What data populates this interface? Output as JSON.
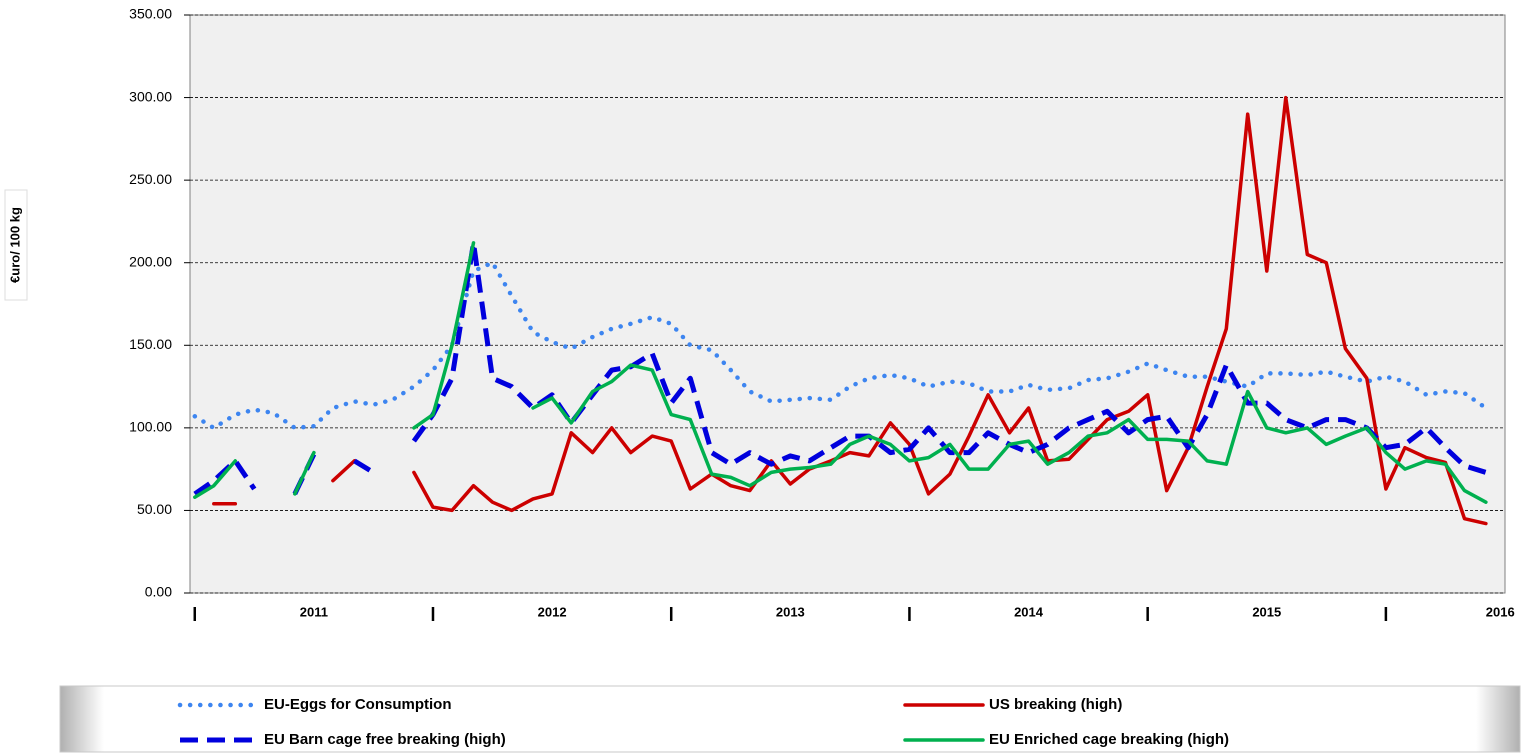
{
  "chart_data": {
    "type": "line",
    "ylabel": "€uro/ 100 kg",
    "x": [
      2011.0,
      2011.08,
      2011.17,
      2011.25,
      2011.33,
      2011.42,
      2011.5,
      2011.58,
      2011.67,
      2011.75,
      2011.83,
      2011.92,
      2012.0,
      2012.08,
      2012.17,
      2012.25,
      2012.33,
      2012.42,
      2012.5,
      2012.58,
      2012.67,
      2012.75,
      2012.83,
      2012.92,
      2013.0,
      2013.08,
      2013.17,
      2013.25,
      2013.33,
      2013.42,
      2013.5,
      2013.58,
      2013.67,
      2013.75,
      2013.83,
      2013.92,
      2014.0,
      2014.08,
      2014.17,
      2014.25,
      2014.33,
      2014.42,
      2014.5,
      2014.58,
      2014.67,
      2014.75,
      2014.83,
      2014.92,
      2015.0,
      2015.08,
      2015.17,
      2015.25,
      2015.33,
      2015.42,
      2015.5,
      2015.58,
      2015.67,
      2015.75,
      2015.83,
      2015.92,
      2016.0,
      2016.08,
      2016.17,
      2016.25,
      2016.33,
      2016.42
    ],
    "series": [
      {
        "name": "EU-Eggs for Consumption",
        "color": "#3d85f0",
        "style": "dotted",
        "values": [
          107,
          100,
          108,
          111,
          109,
          100,
          101,
          112,
          116,
          114,
          117,
          125,
          135,
          150,
          195,
          200,
          180,
          158,
          152,
          148,
          155,
          160,
          163,
          167,
          163,
          150,
          147,
          135,
          122,
          116,
          117,
          118,
          117,
          125,
          130,
          132,
          130,
          125,
          128,
          127,
          122,
          122,
          126,
          123,
          124,
          129,
          130,
          134,
          139,
          135,
          131,
          131,
          128,
          125,
          133,
          133,
          132,
          134,
          131,
          128,
          131,
          128,
          120,
          122,
          121,
          112
        ]
      },
      {
        "name": "US breaking (high)",
        "color": "#cc0000",
        "style": "solid",
        "values": [
          null,
          54,
          54,
          null,
          null,
          null,
          null,
          68,
          80,
          null,
          null,
          73,
          52,
          50,
          65,
          55,
          50,
          57,
          60,
          97,
          85,
          100,
          85,
          95,
          92,
          63,
          72,
          65,
          62,
          80,
          66,
          75,
          80,
          85,
          83,
          103,
          90,
          60,
          72,
          95,
          120,
          97,
          112,
          80,
          81,
          93,
          105,
          110,
          120,
          62,
          88,
          125,
          160,
          290,
          195,
          300,
          205,
          200,
          148,
          130,
          63,
          88,
          82,
          79,
          45,
          42
        ]
      },
      {
        "name": "EU Barn cage free breaking (high)",
        "color": "#0000dd",
        "style": "dashed",
        "values": [
          60,
          68,
          80,
          63,
          null,
          60,
          84,
          null,
          80,
          73,
          null,
          92,
          108,
          130,
          212,
          130,
          125,
          112,
          120,
          103,
          120,
          135,
          137,
          145,
          115,
          130,
          85,
          78,
          85,
          78,
          83,
          80,
          88,
          95,
          95,
          85,
          87,
          100,
          85,
          85,
          97,
          90,
          85,
          90,
          100,
          105,
          110,
          97,
          105,
          107,
          88,
          108,
          138,
          115,
          115,
          105,
          100,
          105,
          105,
          100,
          88,
          90,
          100,
          88,
          77,
          73
        ]
      },
      {
        "name": "EU Enriched cage breaking (high)",
        "color": "#00b04f",
        "style": "solid",
        "values": [
          58,
          65,
          80,
          null,
          null,
          60,
          85,
          null,
          null,
          null,
          null,
          100,
          108,
          150,
          212,
          null,
          null,
          112,
          118,
          103,
          122,
          128,
          138,
          135,
          108,
          105,
          72,
          70,
          65,
          73,
          75,
          76,
          78,
          90,
          95,
          90,
          80,
          82,
          90,
          75,
          75,
          90,
          92,
          78,
          85,
          95,
          97,
          105,
          93,
          93,
          92,
          80,
          78,
          122,
          100,
          97,
          100,
          90,
          95,
          100,
          85,
          75,
          80,
          78,
          62,
          55
        ]
      }
    ],
    "xlim": [
      2010.98,
      2016.5
    ],
    "xticks": [
      {
        "value": 2011.5,
        "label": "2011"
      },
      {
        "value": 2012.5,
        "label": "2012"
      },
      {
        "value": 2013.5,
        "label": "2013"
      },
      {
        "value": 2014.5,
        "label": "2014"
      },
      {
        "value": 2015.5,
        "label": "2015"
      },
      {
        "value": 2016.48,
        "label": "2016"
      }
    ],
    "xminorticks": [
      2011,
      2012,
      2013,
      2014,
      2015,
      2016
    ],
    "ylim": [
      0,
      350
    ],
    "yticks": [
      {
        "value": 0,
        "label": "0.00"
      },
      {
        "value": 50,
        "label": "50.00"
      },
      {
        "value": 100,
        "label": "100.00"
      },
      {
        "value": 150,
        "label": "150.00"
      },
      {
        "value": 200,
        "label": "200.00"
      },
      {
        "value": 250,
        "label": "250.00"
      },
      {
        "value": 300,
        "label": "300.00"
      },
      {
        "value": 350,
        "label": "350.00"
      }
    ],
    "grid": true
  }
}
